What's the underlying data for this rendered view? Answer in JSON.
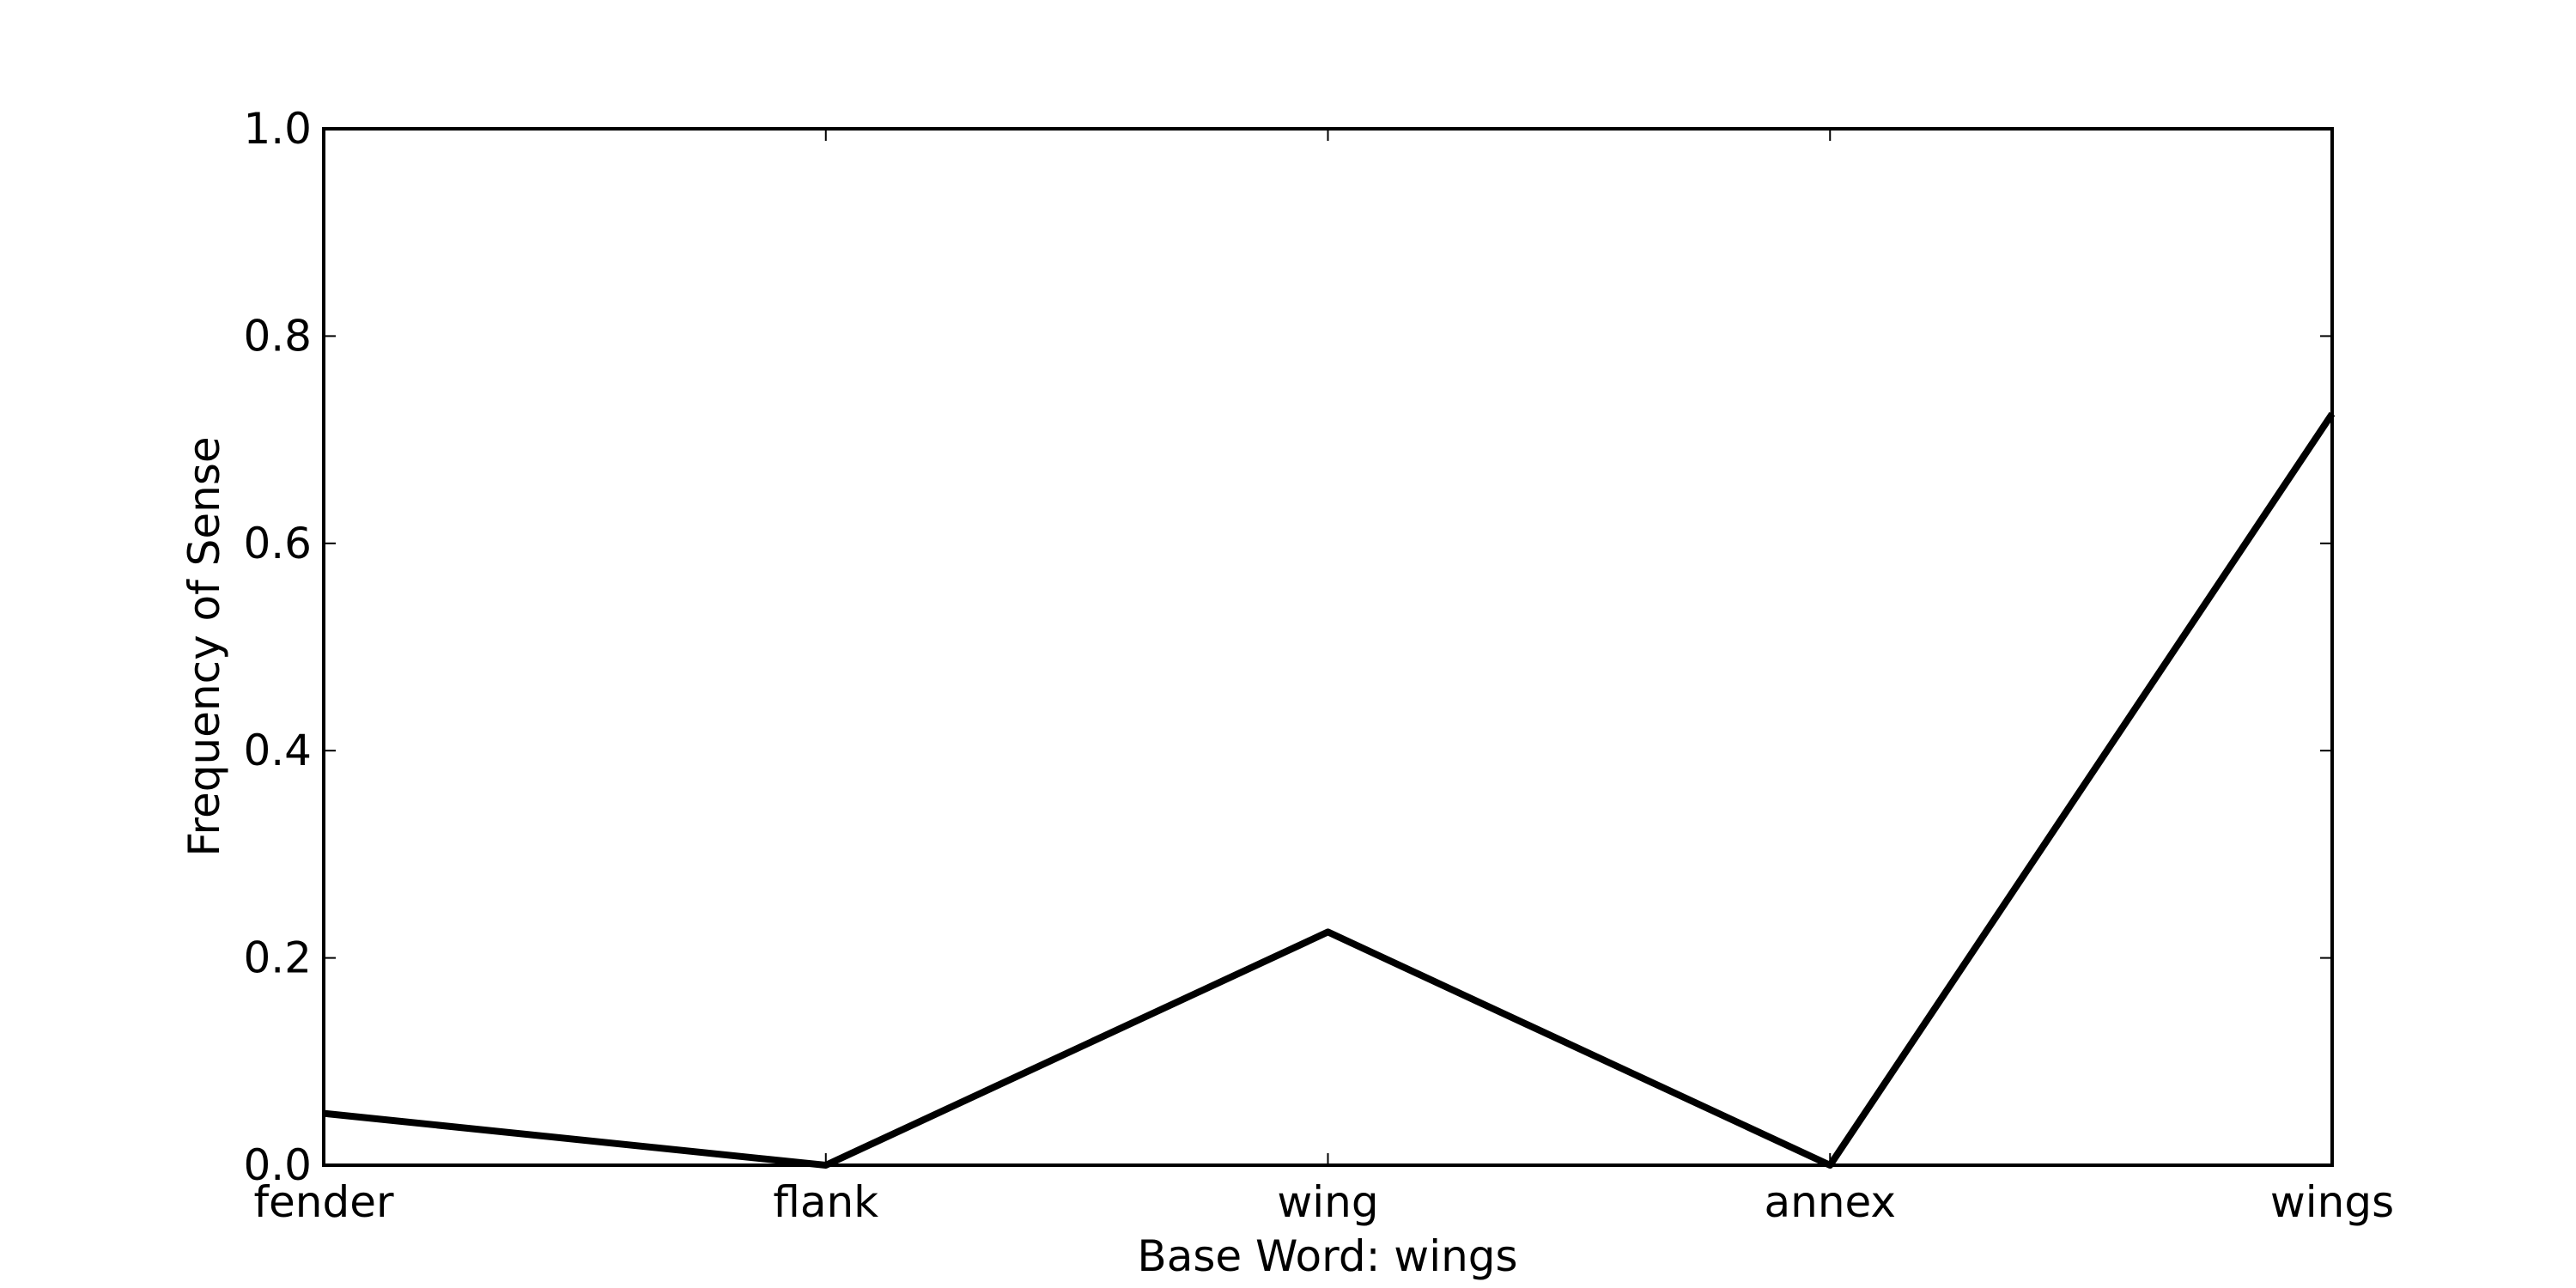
{
  "chart_data": {
    "type": "line",
    "title": "",
    "xlabel": "Base Word: wings",
    "ylabel": "Frequency of Sense",
    "categories": [
      "fender",
      "flank",
      "wing",
      "annex",
      "wings"
    ],
    "series": [
      {
        "values": [
          0.05,
          0.0,
          0.225,
          0.0,
          0.725
        ]
      }
    ],
    "ylim": [
      0,
      1.0
    ],
    "yticks": [
      "0.0",
      "0.2",
      "0.4",
      "0.6",
      "0.8",
      "1.0"
    ],
    "grid": false,
    "line_color": "#000000"
  }
}
